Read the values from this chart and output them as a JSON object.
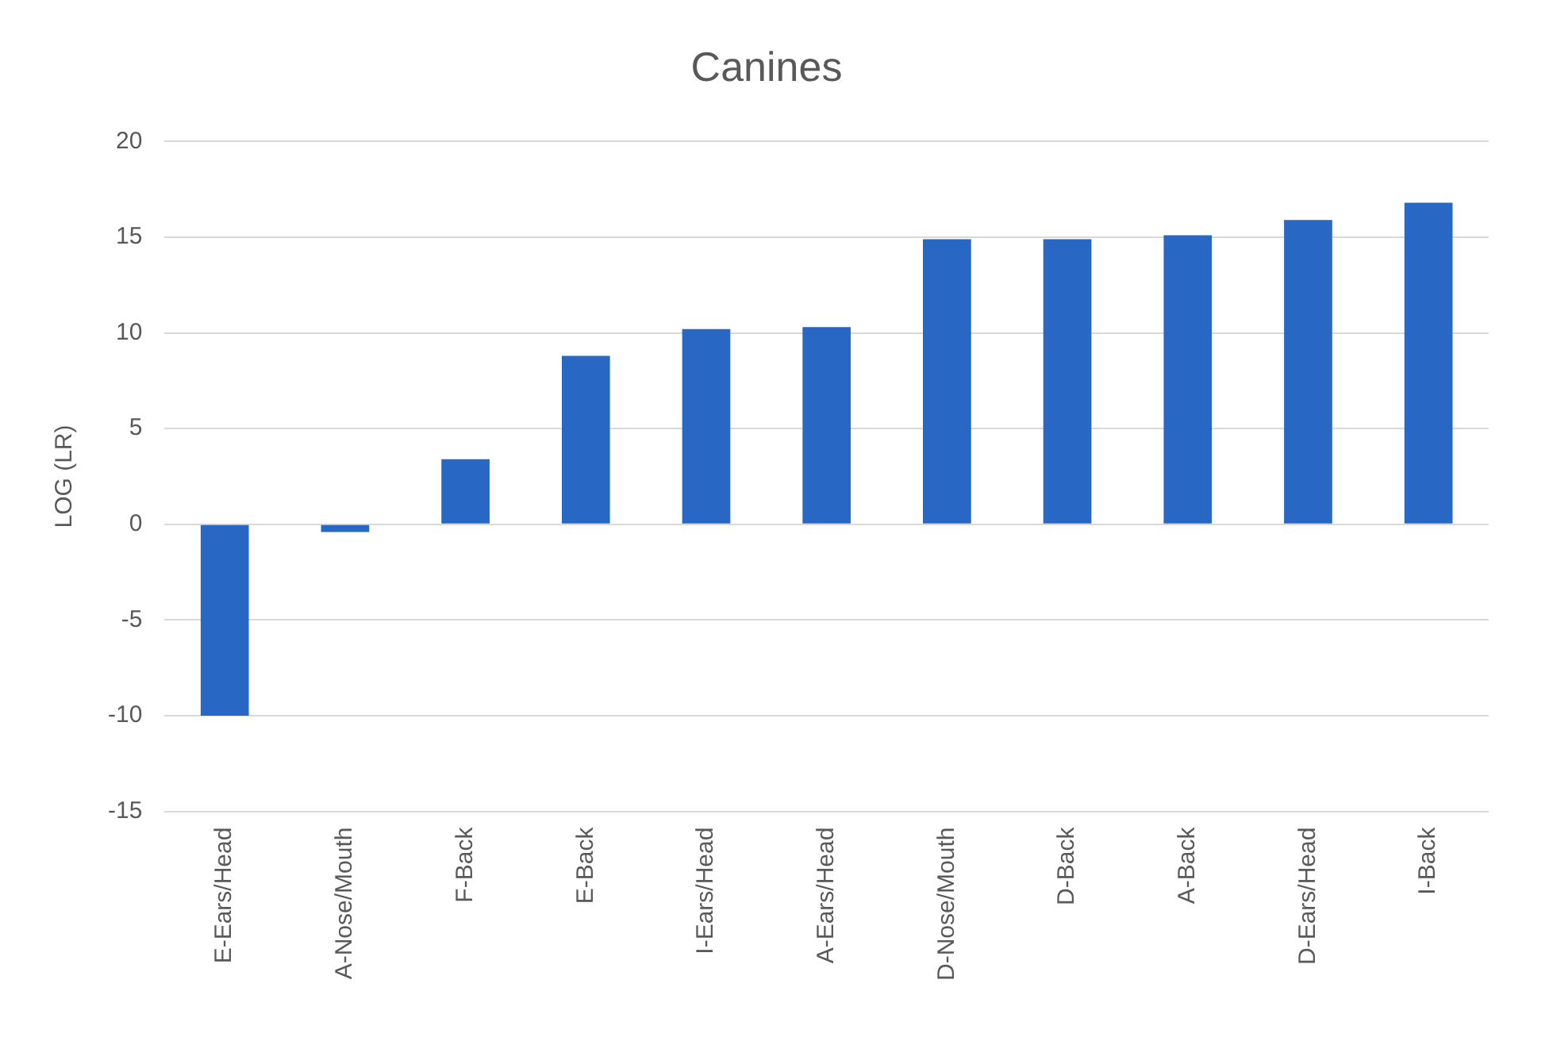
{
  "chart_data": {
    "type": "bar",
    "title": "Canines",
    "ylabel": "LOG (LR)",
    "categories": [
      "E-Ears/Head",
      "A-Nose/Mouth",
      "F-Back",
      "E-Back",
      "I-Ears/Head",
      "A-Ears/Head",
      "D-Nose/Mouth",
      "D-Back",
      "A-Back",
      "D-Ears/Head",
      "I-Back"
    ],
    "values": [
      -10.0,
      -0.4,
      3.4,
      8.8,
      10.2,
      10.3,
      14.9,
      14.9,
      15.1,
      15.9,
      16.8
    ],
    "color": "#2867c3",
    "ylim": [
      -15,
      20
    ],
    "yticks": [
      -15,
      -10,
      -5,
      0,
      5,
      10,
      15,
      20
    ],
    "grid": "y",
    "legend": false
  }
}
